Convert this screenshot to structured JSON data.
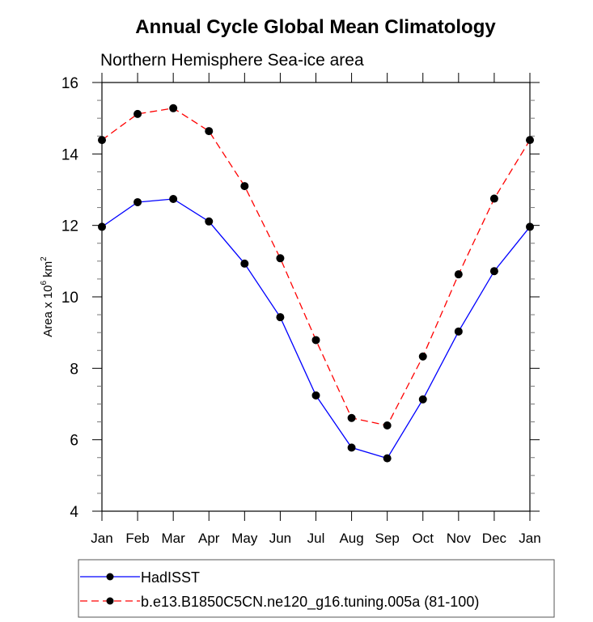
{
  "chart_data": {
    "type": "line",
    "title": "Annual Cycle Global Mean Climatology",
    "subtitle": "Northern Hemisphere Sea-ice area",
    "xlabel": "",
    "ylabel": {
      "prefix": "Area x 10",
      "exp1": "6",
      "mid": " km",
      "exp2": "2"
    },
    "categories": [
      "Jan",
      "Feb",
      "Mar",
      "Apr",
      "May",
      "Jun",
      "Jul",
      "Aug",
      "Sep",
      "Oct",
      "Nov",
      "Dec",
      "Jan"
    ],
    "ylim": [
      4,
      16
    ],
    "yticks": [
      4,
      6,
      8,
      10,
      12,
      14,
      16
    ],
    "yminor_step": 0.5,
    "grid": false,
    "legend_position": "bottom",
    "series": [
      {
        "name": "HadISST",
        "color": "#0000ff",
        "dash": "solid",
        "marker": "filled-circle",
        "values": [
          11.96,
          12.65,
          12.74,
          12.11,
          10.93,
          9.43,
          7.24,
          5.78,
          5.48,
          7.13,
          9.03,
          10.72,
          11.96
        ]
      },
      {
        "name": "b.e13.B1850C5CN.ne120_g16.tuning.005a (81-100)",
        "color": "#ff0000",
        "dash": "dashed",
        "marker": "filled-circle",
        "values": [
          14.39,
          15.12,
          15.28,
          14.64,
          13.1,
          11.08,
          8.79,
          6.61,
          6.4,
          8.33,
          10.63,
          12.75,
          14.39
        ]
      }
    ]
  }
}
